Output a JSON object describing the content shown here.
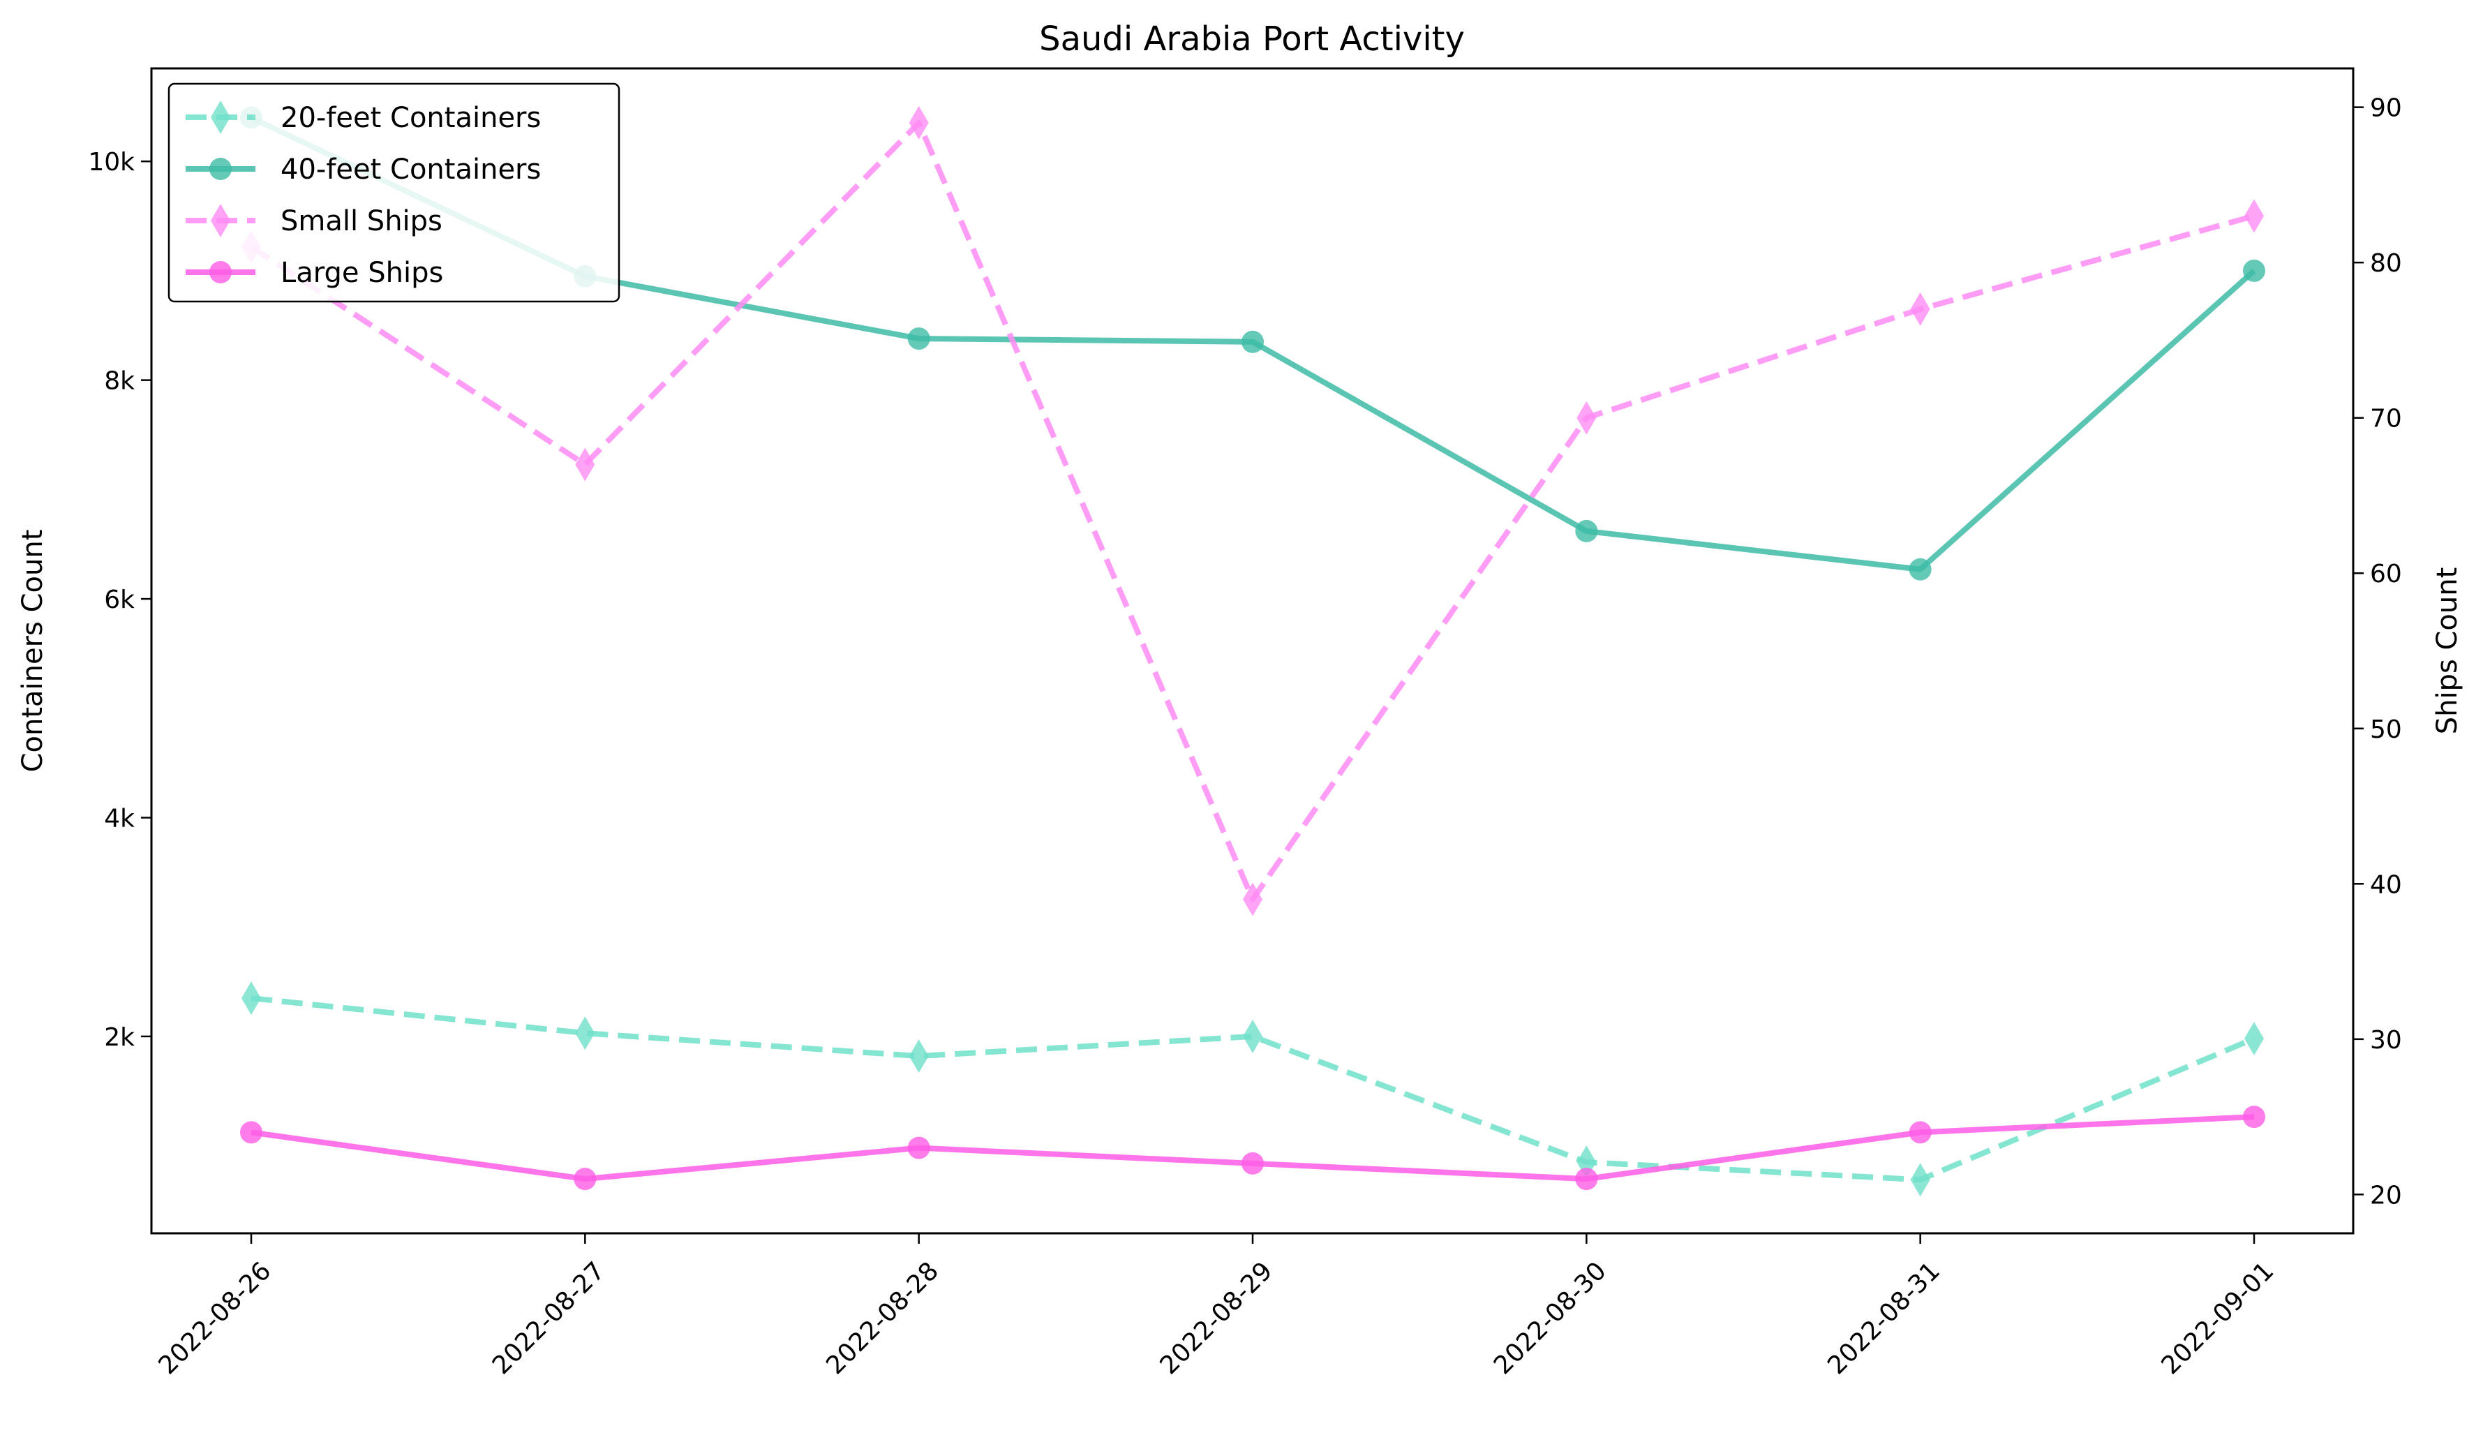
{
  "chart_data": {
    "type": "line",
    "title": "Saudi Arabia Port Activity",
    "xlabel": "",
    "ylabel_left": "Containers Count",
    "ylabel_right": "Ships Count",
    "x": [
      "2022-08-26",
      "2022-08-27",
      "2022-08-28",
      "2022-08-29",
      "2022-08-30",
      "2022-08-31",
      "2022-09-01"
    ],
    "ylim_left": [
      200,
      10850
    ],
    "ylim_right": [
      17.5,
      92.5
    ],
    "yticks_left": [
      {
        "value": 2000,
        "label": "2k"
      },
      {
        "value": 4000,
        "label": "4k"
      },
      {
        "value": 6000,
        "label": "6k"
      },
      {
        "value": 8000,
        "label": "8k"
      },
      {
        "value": 10000,
        "label": "10k"
      }
    ],
    "yticks_right": [
      20,
      30,
      40,
      50,
      60,
      70,
      80,
      90
    ],
    "grid": false,
    "legend_placement": "top-left",
    "series": [
      {
        "name": "20-feet Containers",
        "axis": "left",
        "values": [
          2350,
          2030,
          1820,
          2000,
          850,
          690,
          1980
        ],
        "color": "#6fe0c9",
        "dash": true,
        "marker": "diamond"
      },
      {
        "name": "40-feet Containers",
        "axis": "left",
        "values": [
          10400,
          8950,
          8380,
          8350,
          6620,
          6270,
          9000
        ],
        "color": "#3dbba5",
        "dash": false,
        "marker": "circle"
      },
      {
        "name": "Small Ships",
        "axis": "right",
        "values": [
          81,
          67,
          89,
          39,
          70,
          77,
          83
        ],
        "color": "#ff8cf5",
        "dash": true,
        "marker": "diamond"
      },
      {
        "name": "Large Ships",
        "axis": "right",
        "values": [
          24,
          21,
          23,
          22,
          21,
          24,
          25
        ],
        "color": "#ff5ce6",
        "dash": false,
        "marker": "circle"
      }
    ]
  }
}
